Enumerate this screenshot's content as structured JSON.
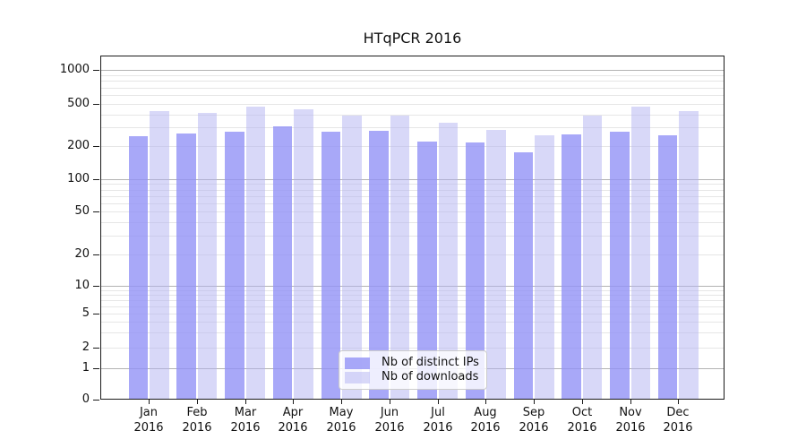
{
  "chart_data": {
    "type": "bar",
    "title": "HTqPCR 2016",
    "categories": [
      "Jan",
      "Feb",
      "Mar",
      "Apr",
      "May",
      "Jun",
      "Jul",
      "Aug",
      "Sep",
      "Oct",
      "Nov",
      "Dec"
    ],
    "x_year_label": "2016",
    "series": [
      {
        "name": "Nb of distinct IPs",
        "values": [
          247,
          263,
          272,
          307,
          274,
          277,
          221,
          217,
          177,
          257,
          276,
          255
        ]
      },
      {
        "name": "Nb of downloads",
        "values": [
          428,
          415,
          472,
          443,
          392,
          388,
          330,
          286,
          255,
          386,
          472,
          428
        ]
      }
    ],
    "y_ticks": [
      0,
      1,
      2,
      5,
      10,
      20,
      50,
      100,
      200,
      500,
      1000
    ],
    "yscale": "symlog",
    "ylim": [
      0,
      1400
    ],
    "xlabel": "",
    "ylabel": "",
    "grid": "horizontal, major lines at powers of 10, minor lines at 2-9 multiples",
    "legend_position": "lower center"
  },
  "colors": {
    "ips_bar": "#9292f6",
    "ips_bar_alpha": 0.8,
    "downloads_bar": "#b1b1f1",
    "downloads_bar_alpha": 0.5,
    "grid_major": "#b3b3b3",
    "grid_minor": "#e6e6e6",
    "spine": "#1a1a1a",
    "text": "#111111"
  }
}
